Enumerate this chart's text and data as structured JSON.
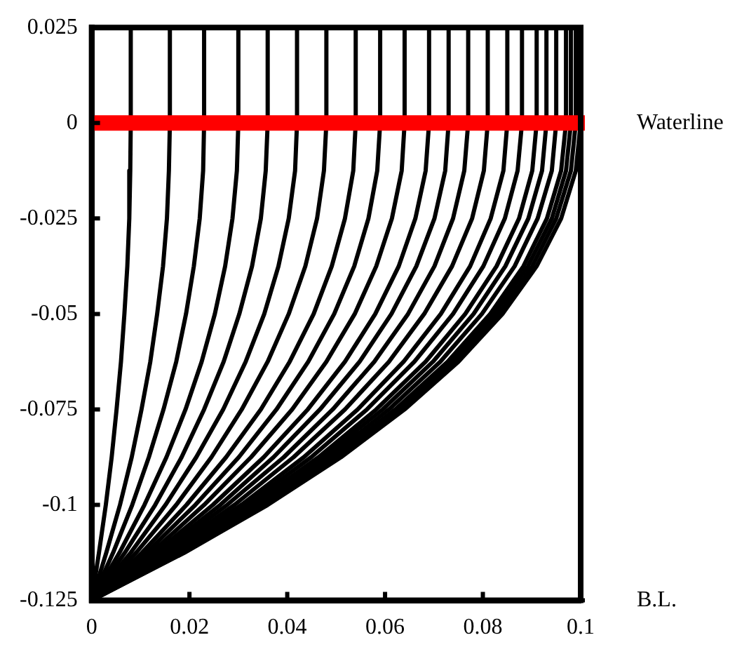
{
  "chart_data": {
    "type": "line",
    "xlim": [
      0,
      0.1
    ],
    "ylim": [
      -0.125,
      0.025
    ],
    "xticks": [
      0,
      0.02,
      0.04,
      0.06,
      0.08,
      0.1
    ],
    "yticks": [
      0.025,
      0,
      -0.025,
      -0.05,
      -0.075,
      -0.1,
      -0.125
    ],
    "grid": false,
    "legend": false,
    "marker": "none",
    "line_style": "solid",
    "ref_lines": [
      {
        "axis": "y",
        "value": 0,
        "label": "Waterline",
        "color": "#ff0000"
      },
      {
        "axis": "y",
        "value": -0.125,
        "label": "B.L.",
        "color": "#000000"
      }
    ],
    "series": [
      {
        "color": "#000000",
        "x": [
          0.008,
          0.008,
          0.0079,
          0.0077,
          0.0073,
          0.0067,
          0.006,
          0.0051,
          0.0041,
          0.0029,
          0.0015,
          0
        ],
        "values": [
          0.025,
          0,
          -0.0125,
          -0.025,
          -0.0375,
          -0.05,
          -0.0625,
          -0.075,
          -0.0875,
          -0.1,
          -0.1125,
          -0.125
        ]
      },
      {
        "color": "#000000",
        "x": [
          0.016,
          0.016,
          0.0158,
          0.0154,
          0.0146,
          0.0134,
          0.012,
          0.0102,
          0.0082,
          0.0058,
          0.003,
          0
        ],
        "values": [
          0.025,
          0,
          -0.0125,
          -0.025,
          -0.0375,
          -0.05,
          -0.0625,
          -0.075,
          -0.0875,
          -0.1,
          -0.1125,
          -0.125
        ]
      },
      {
        "color": "#000000",
        "x": [
          0.023,
          0.023,
          0.0228,
          0.0221,
          0.0209,
          0.0193,
          0.0173,
          0.0147,
          0.0117,
          0.0083,
          0.0044,
          0
        ],
        "values": [
          0.025,
          0,
          -0.0125,
          -0.025,
          -0.0375,
          -0.05,
          -0.0625,
          -0.075,
          -0.0875,
          -0.1,
          -0.1125,
          -0.125
        ]
      },
      {
        "color": "#000000",
        "x": [
          0.03,
          0.03,
          0.0297,
          0.0288,
          0.0273,
          0.0252,
          0.0225,
          0.0192,
          0.0153,
          0.0108,
          0.0057,
          0
        ],
        "values": [
          0.025,
          0,
          -0.0125,
          -0.025,
          -0.0375,
          -0.05,
          -0.0625,
          -0.075,
          -0.0875,
          -0.1,
          -0.1125,
          -0.125
        ]
      },
      {
        "color": "#000000",
        "x": [
          0.036,
          0.036,
          0.0356,
          0.0346,
          0.0328,
          0.0302,
          0.027,
          0.023,
          0.0184,
          0.013,
          0.0068,
          0
        ],
        "values": [
          0.025,
          0,
          -0.0125,
          -0.025,
          -0.0375,
          -0.05,
          -0.0625,
          -0.075,
          -0.0875,
          -0.1,
          -0.1125,
          -0.125
        ]
      },
      {
        "color": "#000000",
        "x": [
          0.042,
          0.042,
          0.0416,
          0.0403,
          0.0382,
          0.0353,
          0.0315,
          0.0269,
          0.0214,
          0.0151,
          0.008,
          0
        ],
        "values": [
          0.025,
          0,
          -0.0125,
          -0.025,
          -0.0375,
          -0.05,
          -0.0625,
          -0.075,
          -0.0875,
          -0.1,
          -0.1125,
          -0.125
        ]
      },
      {
        "color": "#000000",
        "x": [
          0.048,
          0.048,
          0.0475,
          0.0461,
          0.0437,
          0.0403,
          0.036,
          0.0307,
          0.0245,
          0.0173,
          0.0091,
          0
        ],
        "values": [
          0.025,
          0,
          -0.0125,
          -0.025,
          -0.0375,
          -0.05,
          -0.0625,
          -0.075,
          -0.0875,
          -0.1,
          -0.1125,
          -0.125
        ]
      },
      {
        "color": "#000000",
        "x": [
          0.054,
          0.054,
          0.0535,
          0.0518,
          0.0491,
          0.0454,
          0.0405,
          0.0346,
          0.0275,
          0.0194,
          0.0103,
          0
        ],
        "values": [
          0.025,
          0,
          -0.0125,
          -0.025,
          -0.0375,
          -0.05,
          -0.0625,
          -0.075,
          -0.0875,
          -0.1,
          -0.1125,
          -0.125
        ]
      },
      {
        "color": "#000000",
        "x": [
          0.059,
          0.059,
          0.0584,
          0.0566,
          0.0537,
          0.0496,
          0.0443,
          0.0378,
          0.0301,
          0.0212,
          0.0112,
          0
        ],
        "values": [
          0.025,
          0,
          -0.0125,
          -0.025,
          -0.0375,
          -0.05,
          -0.0625,
          -0.075,
          -0.0875,
          -0.1,
          -0.1125,
          -0.125
        ]
      },
      {
        "color": "#000000",
        "x": [
          0.064,
          0.064,
          0.0634,
          0.0614,
          0.0582,
          0.0538,
          0.048,
          0.041,
          0.0326,
          0.023,
          0.0122,
          0
        ],
        "values": [
          0.025,
          0,
          -0.0125,
          -0.025,
          -0.0375,
          -0.05,
          -0.0625,
          -0.075,
          -0.0875,
          -0.1,
          -0.1125,
          -0.125
        ]
      },
      {
        "color": "#000000",
        "x": [
          0.069,
          0.069,
          0.0683,
          0.0662,
          0.0628,
          0.058,
          0.0518,
          0.0442,
          0.0352,
          0.0248,
          0.0131,
          0
        ],
        "values": [
          0.025,
          0,
          -0.0125,
          -0.025,
          -0.0375,
          -0.05,
          -0.0625,
          -0.075,
          -0.0875,
          -0.1,
          -0.1125,
          -0.125
        ]
      },
      {
        "color": "#000000",
        "x": [
          0.073,
          0.073,
          0.0723,
          0.0701,
          0.0664,
          0.0613,
          0.0548,
          0.0467,
          0.0372,
          0.0263,
          0.0139,
          0
        ],
        "values": [
          0.025,
          0,
          -0.0125,
          -0.025,
          -0.0375,
          -0.05,
          -0.0625,
          -0.075,
          -0.0875,
          -0.1,
          -0.1125,
          -0.125
        ]
      },
      {
        "color": "#000000",
        "x": [
          0.077,
          0.077,
          0.0762,
          0.0739,
          0.0701,
          0.0647,
          0.0578,
          0.0493,
          0.0393,
          0.0277,
          0.0146,
          0
        ],
        "values": [
          0.025,
          0,
          -0.0125,
          -0.025,
          -0.0375,
          -0.05,
          -0.0625,
          -0.075,
          -0.0875,
          -0.1,
          -0.1125,
          -0.125
        ]
      },
      {
        "color": "#000000",
        "x": [
          0.081,
          0.081,
          0.0802,
          0.0778,
          0.0737,
          0.068,
          0.0608,
          0.0518,
          0.0413,
          0.0292,
          0.0154,
          0
        ],
        "values": [
          0.025,
          0,
          -0.0125,
          -0.025,
          -0.0375,
          -0.05,
          -0.0625,
          -0.075,
          -0.0875,
          -0.1,
          -0.1125,
          -0.125
        ]
      },
      {
        "color": "#000000",
        "x": [
          0.085,
          0.085,
          0.0842,
          0.0816,
          0.0774,
          0.0714,
          0.0638,
          0.0544,
          0.0434,
          0.0306,
          0.0162,
          0
        ],
        "values": [
          0.025,
          0,
          -0.0125,
          -0.025,
          -0.0375,
          -0.05,
          -0.0625,
          -0.075,
          -0.0875,
          -0.1,
          -0.1125,
          -0.125
        ]
      },
      {
        "color": "#000000",
        "x": [
          0.088,
          0.088,
          0.0871,
          0.0845,
          0.0801,
          0.0739,
          0.066,
          0.0563,
          0.0449,
          0.0317,
          0.0167,
          0
        ],
        "values": [
          0.025,
          0,
          -0.0125,
          -0.025,
          -0.0375,
          -0.05,
          -0.0625,
          -0.075,
          -0.0875,
          -0.1,
          -0.1125,
          -0.125
        ]
      },
      {
        "color": "#000000",
        "x": [
          0.091,
          0.091,
          0.0901,
          0.0874,
          0.0828,
          0.0764,
          0.0683,
          0.0582,
          0.0464,
          0.0328,
          0.0173,
          0
        ],
        "values": [
          0.025,
          0,
          -0.0125,
          -0.025,
          -0.0375,
          -0.05,
          -0.0625,
          -0.075,
          -0.0875,
          -0.1,
          -0.1125,
          -0.125
        ]
      },
      {
        "color": "#000000",
        "x": [
          0.093,
          0.093,
          0.0921,
          0.0893,
          0.0846,
          0.0781,
          0.0698,
          0.0595,
          0.0474,
          0.0335,
          0.0177,
          0
        ],
        "values": [
          0.025,
          0,
          -0.0125,
          -0.025,
          -0.0375,
          -0.05,
          -0.0625,
          -0.075,
          -0.0875,
          -0.1,
          -0.1125,
          -0.125
        ]
      },
      {
        "color": "#000000",
        "x": [
          0.095,
          0.095,
          0.0941,
          0.0912,
          0.0865,
          0.0798,
          0.0713,
          0.0608,
          0.0485,
          0.0342,
          0.0181,
          0
        ],
        "values": [
          0.025,
          0,
          -0.0125,
          -0.025,
          -0.0375,
          -0.05,
          -0.0625,
          -0.075,
          -0.0875,
          -0.1,
          -0.1125,
          -0.125
        ]
      },
      {
        "color": "#000000",
        "x": [
          0.097,
          0.097,
          0.096,
          0.0931,
          0.0883,
          0.0815,
          0.0728,
          0.0621,
          0.0495,
          0.0349,
          0.0184,
          0
        ],
        "values": [
          0.025,
          0,
          -0.0125,
          -0.025,
          -0.0375,
          -0.05,
          -0.0625,
          -0.075,
          -0.0875,
          -0.1,
          -0.1125,
          -0.125
        ]
      },
      {
        "color": "#000000",
        "x": [
          0.098,
          0.098,
          0.097,
          0.0941,
          0.0892,
          0.0823,
          0.0735,
          0.0627,
          0.05,
          0.0353,
          0.0186,
          0
        ],
        "values": [
          0.025,
          0,
          -0.0125,
          -0.025,
          -0.0375,
          -0.05,
          -0.0625,
          -0.075,
          -0.0875,
          -0.1,
          -0.1125,
          -0.125
        ]
      },
      {
        "color": "#000000",
        "x": [
          0.099,
          0.099,
          0.098,
          0.095,
          0.0901,
          0.0832,
          0.0743,
          0.0634,
          0.0505,
          0.0356,
          0.0188,
          0
        ],
        "values": [
          0.025,
          0,
          -0.0125,
          -0.025,
          -0.0375,
          -0.05,
          -0.0625,
          -0.075,
          -0.0875,
          -0.1,
          -0.1125,
          -0.125
        ]
      },
      {
        "color": "#000000",
        "x": [
          0.1,
          0.1,
          0.099,
          0.096,
          0.091,
          0.084,
          0.075,
          0.064,
          0.051,
          0.036,
          0.019,
          0
        ],
        "values": [
          0.025,
          0,
          -0.0125,
          -0.025,
          -0.0375,
          -0.05,
          -0.0625,
          -0.075,
          -0.0875,
          -0.1,
          -0.1125,
          -0.125
        ]
      }
    ]
  }
}
